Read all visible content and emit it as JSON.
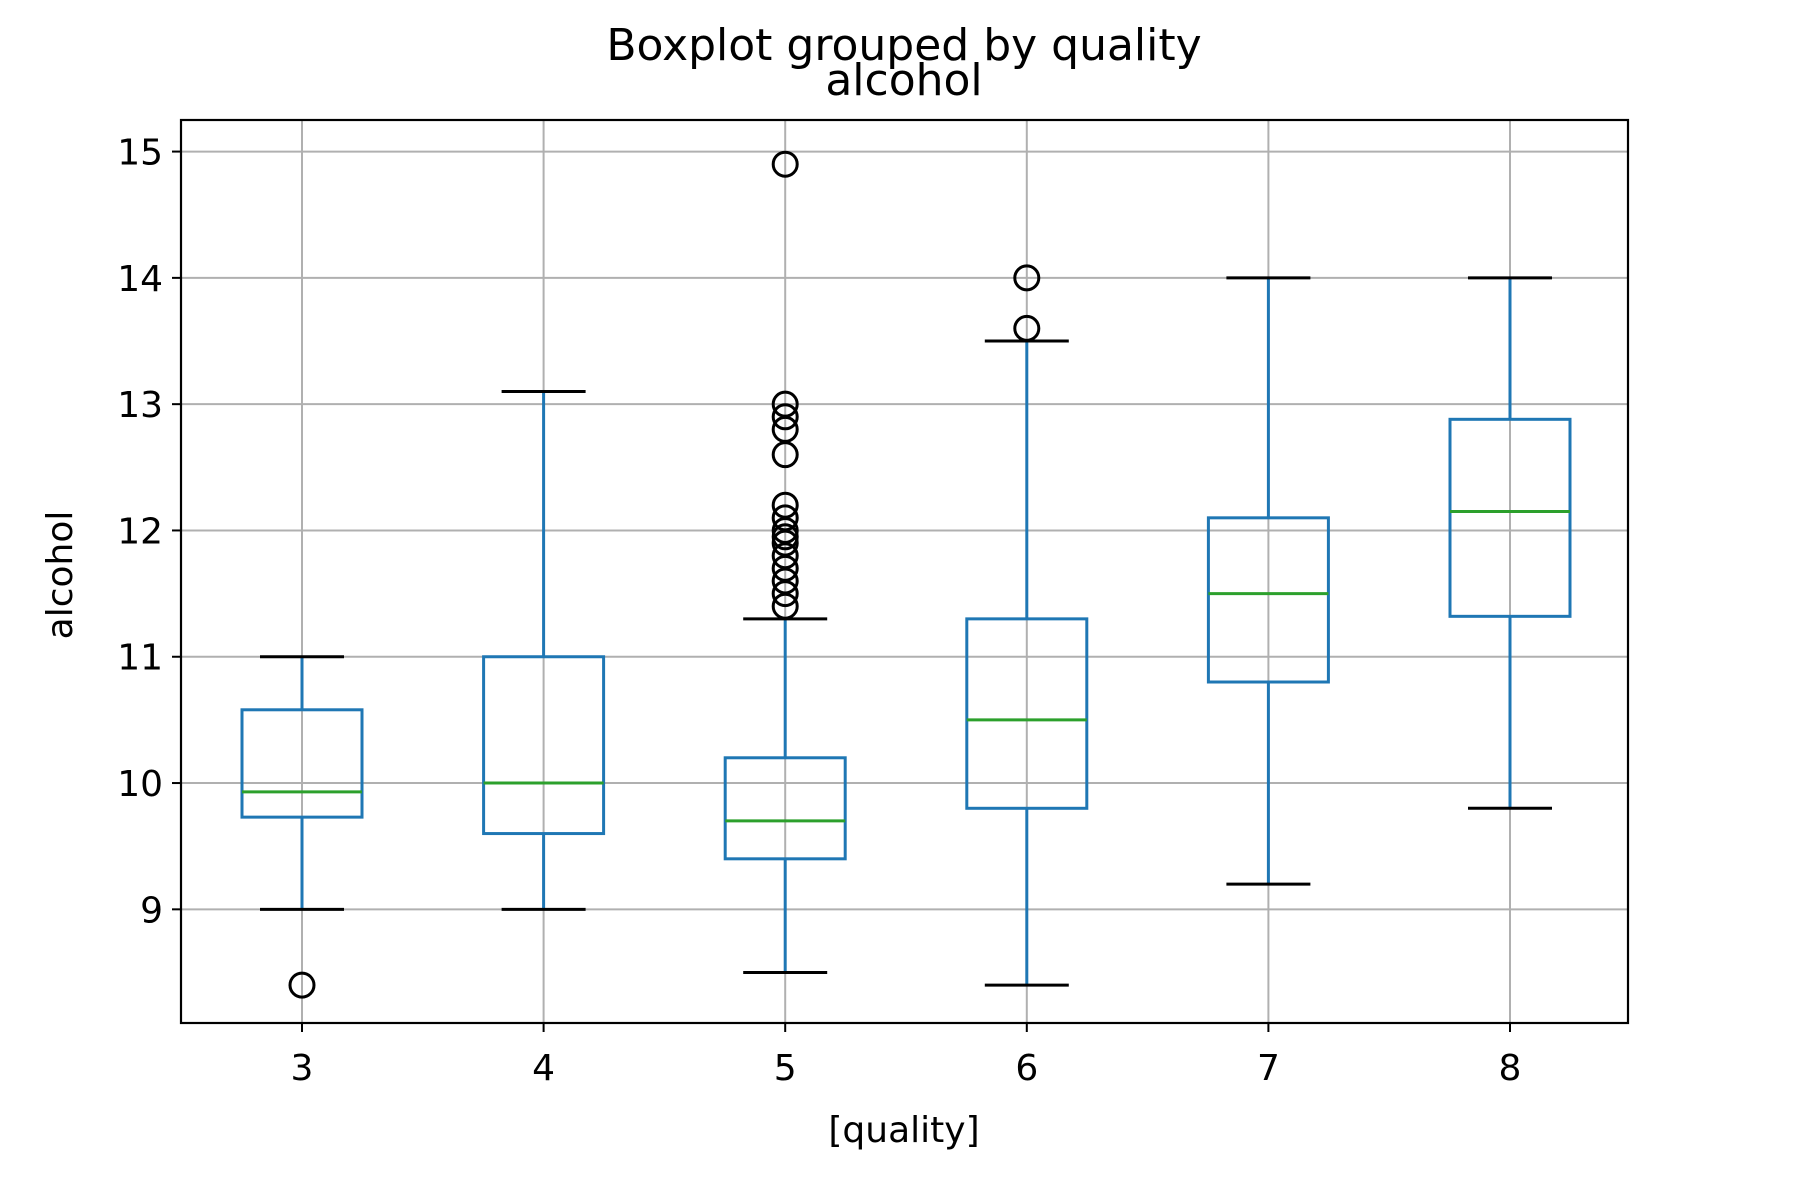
{
  "chart_data": {
    "type": "boxplot",
    "suptitle": "Boxplot grouped by quality",
    "title": "alcohol",
    "xlabel": "[quality]",
    "ylabel": "alcohol",
    "categories": [
      "3",
      "4",
      "5",
      "6",
      "7",
      "8"
    ],
    "ylim": [
      8.1,
      15.25
    ],
    "yticks": [
      9,
      10,
      11,
      12,
      13,
      14,
      15
    ],
    "grid": true,
    "colors": {
      "box": "#1f77b4",
      "median": "#2ca02c",
      "flier": "#000000",
      "cap": "#000000"
    },
    "boxes": [
      {
        "category": "3",
        "whisker_low": 9.0,
        "q1": 9.73,
        "median": 9.93,
        "q3": 10.58,
        "whisker_high": 11.0,
        "fliers": [
          8.4
        ]
      },
      {
        "category": "4",
        "whisker_low": 9.0,
        "q1": 9.6,
        "median": 10.0,
        "q3": 11.0,
        "whisker_high": 13.1,
        "fliers": []
      },
      {
        "category": "5",
        "whisker_low": 8.5,
        "q1": 9.4,
        "median": 9.7,
        "q3": 10.2,
        "whisker_high": 11.3,
        "fliers": [
          14.9,
          13.0,
          12.9,
          12.8,
          12.6,
          12.2,
          12.1,
          12.0,
          11.95,
          11.9,
          11.8,
          11.7,
          11.6,
          11.5,
          11.4
        ]
      },
      {
        "category": "6",
        "whisker_low": 8.4,
        "q1": 9.8,
        "median": 10.5,
        "q3": 11.3,
        "whisker_high": 13.5,
        "fliers": [
          14.0,
          13.6
        ]
      },
      {
        "category": "7",
        "whisker_low": 9.2,
        "q1": 10.8,
        "median": 11.5,
        "q3": 12.1,
        "whisker_high": 14.0,
        "fliers": []
      },
      {
        "category": "8",
        "whisker_low": 9.8,
        "q1": 11.32,
        "median": 12.15,
        "q3": 12.88,
        "whisker_high": 14.0,
        "fliers": []
      }
    ]
  }
}
